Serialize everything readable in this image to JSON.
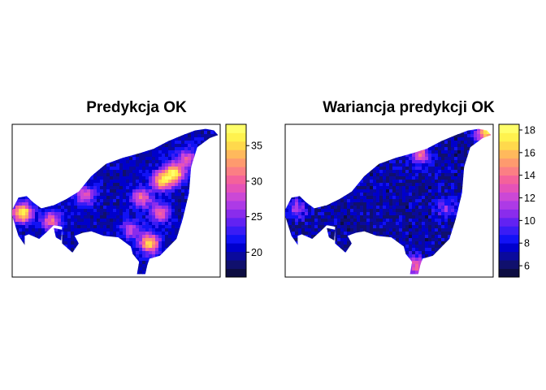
{
  "panels": [
    {
      "title": "Predykcja OK",
      "legend": {
        "min": 16.5,
        "max": 38,
        "ticks": [
          20,
          25,
          30,
          35
        ],
        "tick_labels": [
          "20",
          "25",
          "30",
          "35"
        ]
      },
      "field": {
        "base": 20,
        "amplitude": 17,
        "hotspots": [
          {
            "u": 0.05,
            "v": 0.58,
            "w": 1.0
          },
          {
            "u": 0.19,
            "v": 0.63,
            "w": 0.6
          },
          {
            "u": 0.35,
            "v": 0.46,
            "w": 0.55
          },
          {
            "u": 0.62,
            "v": 0.48,
            "w": 0.6
          },
          {
            "u": 0.72,
            "v": 0.37,
            "w": 0.85
          },
          {
            "u": 0.78,
            "v": 0.32,
            "w": 0.95
          },
          {
            "u": 0.71,
            "v": 0.58,
            "w": 0.6
          },
          {
            "u": 0.66,
            "v": 0.78,
            "w": 0.9
          },
          {
            "u": 0.57,
            "v": 0.69,
            "w": 0.45
          },
          {
            "u": 0.84,
            "v": 0.22,
            "w": 0.5
          }
        ]
      }
    },
    {
      "title": "Wariancja predykcji OK",
      "legend": {
        "min": 5,
        "max": 18.5,
        "ticks": [
          6,
          8,
          10,
          12,
          14,
          16,
          18
        ],
        "tick_labels": [
          "6",
          "8",
          "10",
          "12",
          "14",
          "16",
          "18"
        ]
      },
      "field": {
        "base": 7,
        "amplitude": 11,
        "hotspots": [
          {
            "u": 0.97,
            "v": 0.05,
            "w": 1.0
          },
          {
            "u": 0.65,
            "v": 0.2,
            "w": 0.55
          },
          {
            "u": 0.63,
            "v": 0.93,
            "w": 0.6
          },
          {
            "u": 0.06,
            "v": 0.55,
            "w": 0.35
          },
          {
            "u": 0.77,
            "v": 0.55,
            "w": 0.3
          }
        ]
      }
    }
  ],
  "palette": [
    "#0d0d42",
    "#10106d",
    "#0a0a9c",
    "#0000cc",
    "#1212f5",
    "#3a1cf5",
    "#6222f2",
    "#8a2cec",
    "#ad3ae6",
    "#cb48d6",
    "#e552b8",
    "#f4629b",
    "#fb7f84",
    "#fe9a6e",
    "#ffb95c",
    "#ffd94c",
    "#fff24e",
    "#ffff6a"
  ]
}
